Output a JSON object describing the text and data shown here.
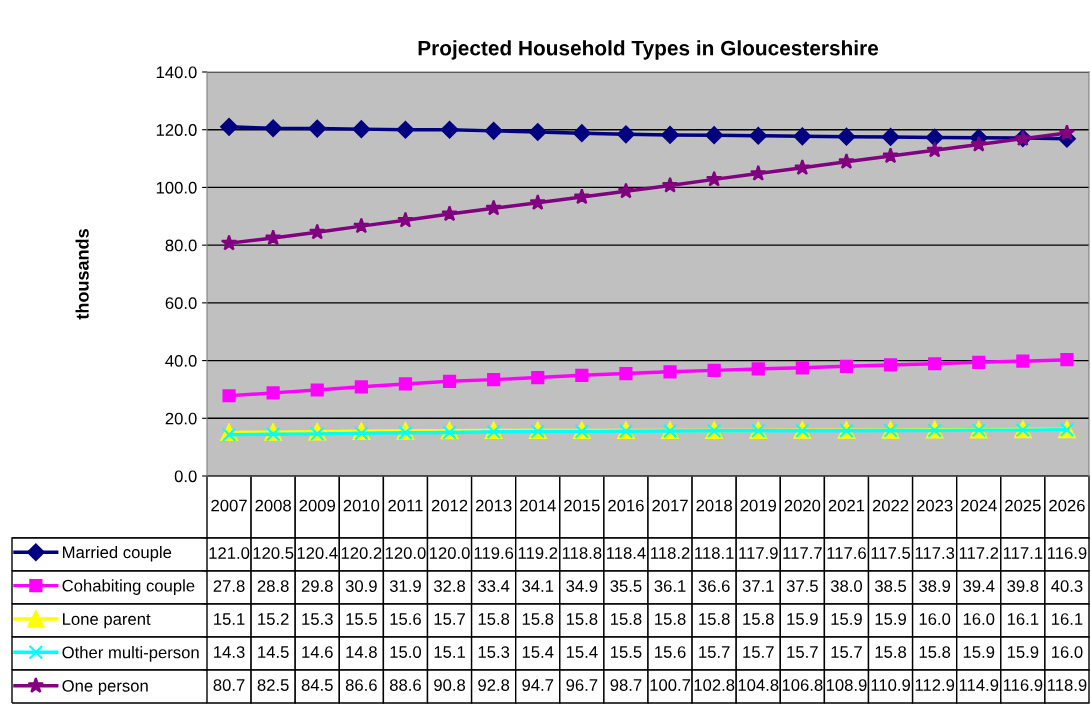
{
  "chart_data": {
    "type": "line",
    "title": "Projected Household Types in Gloucestershire",
    "ylabel": "thousands",
    "categories": [
      "2007",
      "2008",
      "2009",
      "2010",
      "2011",
      "2012",
      "2013",
      "2014",
      "2015",
      "2016",
      "2017",
      "2018",
      "2019",
      "2020",
      "2021",
      "2022",
      "2023",
      "2024",
      "2025",
      "2026"
    ],
    "ylim": [
      0,
      140
    ],
    "yticks": [
      {
        "value": 0,
        "label": "0.0"
      },
      {
        "value": 20,
        "label": "20.0"
      },
      {
        "value": 40,
        "label": "40.0"
      },
      {
        "value": 60,
        "label": "60.0"
      },
      {
        "value": 80,
        "label": "80.0"
      },
      {
        "value": 100,
        "label": "100.0"
      },
      {
        "value": 120,
        "label": "120.0"
      },
      {
        "value": 140,
        "label": "140.0"
      }
    ],
    "grid": "y",
    "legend": "bottom",
    "line_style": "solid",
    "series": [
      {
        "name": "Married couple",
        "color": "#000080",
        "marker": "diamond",
        "values": [
          121.0,
          120.5,
          120.4,
          120.2,
          120.0,
          120.0,
          119.6,
          119.2,
          118.8,
          118.4,
          118.2,
          118.1,
          117.9,
          117.7,
          117.6,
          117.5,
          117.3,
          117.2,
          117.1,
          116.9
        ],
        "value_labels": [
          "121.0",
          "120.5",
          "120.4",
          "120.2",
          "120.0",
          "120.0",
          "119.6",
          "119.2",
          "118.8",
          "118.4",
          "118.2",
          "118.1",
          "117.9",
          "117.7",
          "117.6",
          "117.5",
          "117.3",
          "117.2",
          "117.1",
          "116.9"
        ]
      },
      {
        "name": "Cohabiting couple",
        "color": "#ff00ff",
        "marker": "square",
        "values": [
          27.8,
          28.8,
          29.8,
          30.9,
          31.9,
          32.8,
          33.4,
          34.1,
          34.9,
          35.5,
          36.1,
          36.6,
          37.1,
          37.5,
          38.0,
          38.5,
          38.9,
          39.4,
          39.8,
          40.3
        ],
        "value_labels": [
          "27.8",
          "28.8",
          "29.8",
          "30.9",
          "31.9",
          "32.8",
          "33.4",
          "34.1",
          "34.9",
          "35.5",
          "36.1",
          "36.6",
          "37.1",
          "37.5",
          "38.0",
          "38.5",
          "38.9",
          "39.4",
          "39.8",
          "40.3"
        ]
      },
      {
        "name": "Lone parent",
        "color": "#ffff00",
        "marker": "triangle",
        "values": [
          15.1,
          15.2,
          15.3,
          15.5,
          15.6,
          15.7,
          15.8,
          15.8,
          15.8,
          15.8,
          15.8,
          15.8,
          15.8,
          15.9,
          15.9,
          15.9,
          16.0,
          16.0,
          16.1,
          16.1
        ],
        "value_labels": [
          "15.1",
          "15.2",
          "15.3",
          "15.5",
          "15.6",
          "15.7",
          "15.8",
          "15.8",
          "15.8",
          "15.8",
          "15.8",
          "15.8",
          "15.8",
          "15.9",
          "15.9",
          "15.9",
          "16.0",
          "16.0",
          "16.1",
          "16.1"
        ]
      },
      {
        "name": "Other multi-person",
        "color": "#00ffff",
        "marker": "cross",
        "values": [
          14.3,
          14.5,
          14.6,
          14.8,
          15.0,
          15.1,
          15.3,
          15.4,
          15.4,
          15.5,
          15.6,
          15.7,
          15.7,
          15.7,
          15.7,
          15.8,
          15.8,
          15.9,
          15.9,
          16.0
        ],
        "value_labels": [
          "14.3",
          "14.5",
          "14.6",
          "14.8",
          "15.0",
          "15.1",
          "15.3",
          "15.4",
          "15.4",
          "15.5",
          "15.6",
          "15.7",
          "15.7",
          "15.7",
          "15.7",
          "15.8",
          "15.8",
          "15.9",
          "15.9",
          "16.0"
        ]
      },
      {
        "name": "One person",
        "color": "#800080",
        "marker": "star",
        "values": [
          80.7,
          82.5,
          84.5,
          86.6,
          88.6,
          90.8,
          92.8,
          94.7,
          96.7,
          98.7,
          100.7,
          102.8,
          104.8,
          106.8,
          108.9,
          110.9,
          112.9,
          114.9,
          116.9,
          118.9
        ],
        "value_labels": [
          "80.7",
          "82.5",
          "84.5",
          "86.6",
          "88.6",
          "90.8",
          "92.8",
          "94.7",
          "96.7",
          "98.7",
          "100.7",
          "102.8",
          "104.8",
          "106.8",
          "108.9",
          "110.9",
          "112.9",
          "114.9",
          "116.9",
          "118.9"
        ]
      }
    ]
  }
}
